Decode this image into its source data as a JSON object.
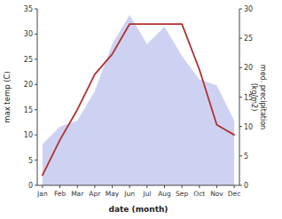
{
  "chart_data": {
    "type": "line",
    "categories": [
      "Jan",
      "Feb",
      "Mar",
      "Apr",
      "May",
      "Jun",
      "Jul",
      "Aug",
      "Sep",
      "Oct",
      "Nov",
      "Dec"
    ],
    "xlabel": "date (month)",
    "ylabel": "max temp (C)",
    "y2label": "med. precipitation\n(kg/m2)",
    "series": [
      {
        "type": "area",
        "axis": "y2",
        "color": "#c5caf0",
        "values": [
          7,
          10,
          11,
          16,
          24,
          29,
          24,
          27,
          22,
          18,
          17,
          11
        ]
      },
      {
        "type": "line",
        "color": "#b03030",
        "values": [
          2,
          9,
          15,
          22,
          26,
          32,
          32,
          32,
          32,
          23,
          12,
          10
        ]
      }
    ],
    "ylim": [
      0,
      35
    ],
    "yticks": [
      0,
      5,
      10,
      15,
      20,
      25,
      30,
      35
    ],
    "y2lim": [
      0,
      30
    ],
    "y2ticks": [
      0,
      5,
      10,
      15,
      20,
      25,
      30
    ],
    "grid": false
  }
}
